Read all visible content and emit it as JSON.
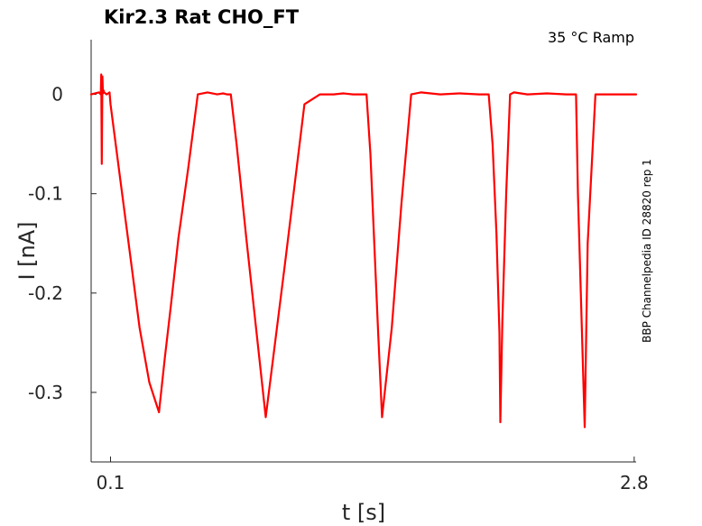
{
  "chart_data": {
    "type": "line",
    "title": "Kir2.3  Rat  CHO_FT",
    "subtitle": "35 °C  Ramp",
    "side_label": "BBP Channelpedia ID 28820 rep 1",
    "xlabel": "t [s]",
    "ylabel": "I [nA]",
    "xlim": [
      0.0,
      2.81
    ],
    "ylim": [
      -0.37,
      0.055
    ],
    "xticks": [
      {
        "value": 0.1,
        "label": "0.1"
      },
      {
        "value": 2.8,
        "label": "2.8"
      }
    ],
    "yticks": [
      {
        "value": 0,
        "label": "0"
      },
      {
        "value": -0.1,
        "label": "-0.1"
      },
      {
        "value": -0.2,
        "label": "-0.2"
      },
      {
        "value": -0.3,
        "label": "-0.3"
      }
    ],
    "grid": false,
    "series": [
      {
        "color": "#ff0000",
        "x": [
          0.0,
          0.04,
          0.05,
          0.052,
          0.055,
          0.058,
          0.061,
          0.064,
          0.067,
          0.08,
          0.095,
          0.1,
          0.15,
          0.2,
          0.25,
          0.3,
          0.35,
          0.38,
          0.41,
          0.43,
          0.45,
          0.5,
          0.55,
          0.6,
          0.65,
          0.68,
          0.7,
          0.72,
          0.75,
          0.8,
          0.9,
          1.0,
          1.1,
          1.18,
          1.2,
          1.25,
          1.3,
          1.35,
          1.4,
          1.42,
          1.44,
          1.46,
          1.48,
          1.5,
          1.55,
          1.6,
          1.65,
          1.7,
          1.8,
          1.9,
          2.0,
          2.05,
          2.07,
          2.09,
          2.105,
          2.11,
          2.12,
          2.14,
          2.16,
          2.18,
          2.25,
          2.35,
          2.45,
          2.5,
          2.51,
          2.525,
          2.545,
          2.56,
          2.6,
          2.7,
          2.81
        ],
        "y": [
          0.0,
          0.002,
          0.0,
          0.02,
          -0.07,
          0.018,
          0.001,
          0.004,
          0.002,
          0.0,
          0.002,
          -0.01,
          -0.085,
          -0.16,
          -0.235,
          -0.29,
          -0.32,
          -0.265,
          -0.215,
          -0.18,
          -0.145,
          -0.075,
          0.0,
          0.002,
          0.0,
          0.001,
          0.0,
          0.0,
          -0.05,
          -0.145,
          -0.325,
          -0.17,
          -0.01,
          0.0,
          0.0,
          0.0,
          0.001,
          0.0,
          0.0,
          0.0,
          -0.06,
          -0.15,
          -0.24,
          -0.325,
          -0.235,
          -0.11,
          0.0,
          0.002,
          0.0,
          0.001,
          0.0,
          0.0,
          -0.05,
          -0.14,
          -0.24,
          -0.33,
          -0.23,
          -0.1,
          0.0,
          0.002,
          0.0,
          0.001,
          0.0,
          0.0,
          -0.1,
          -0.2,
          -0.335,
          -0.15,
          0.0,
          0.0,
          0.0
        ]
      }
    ]
  }
}
